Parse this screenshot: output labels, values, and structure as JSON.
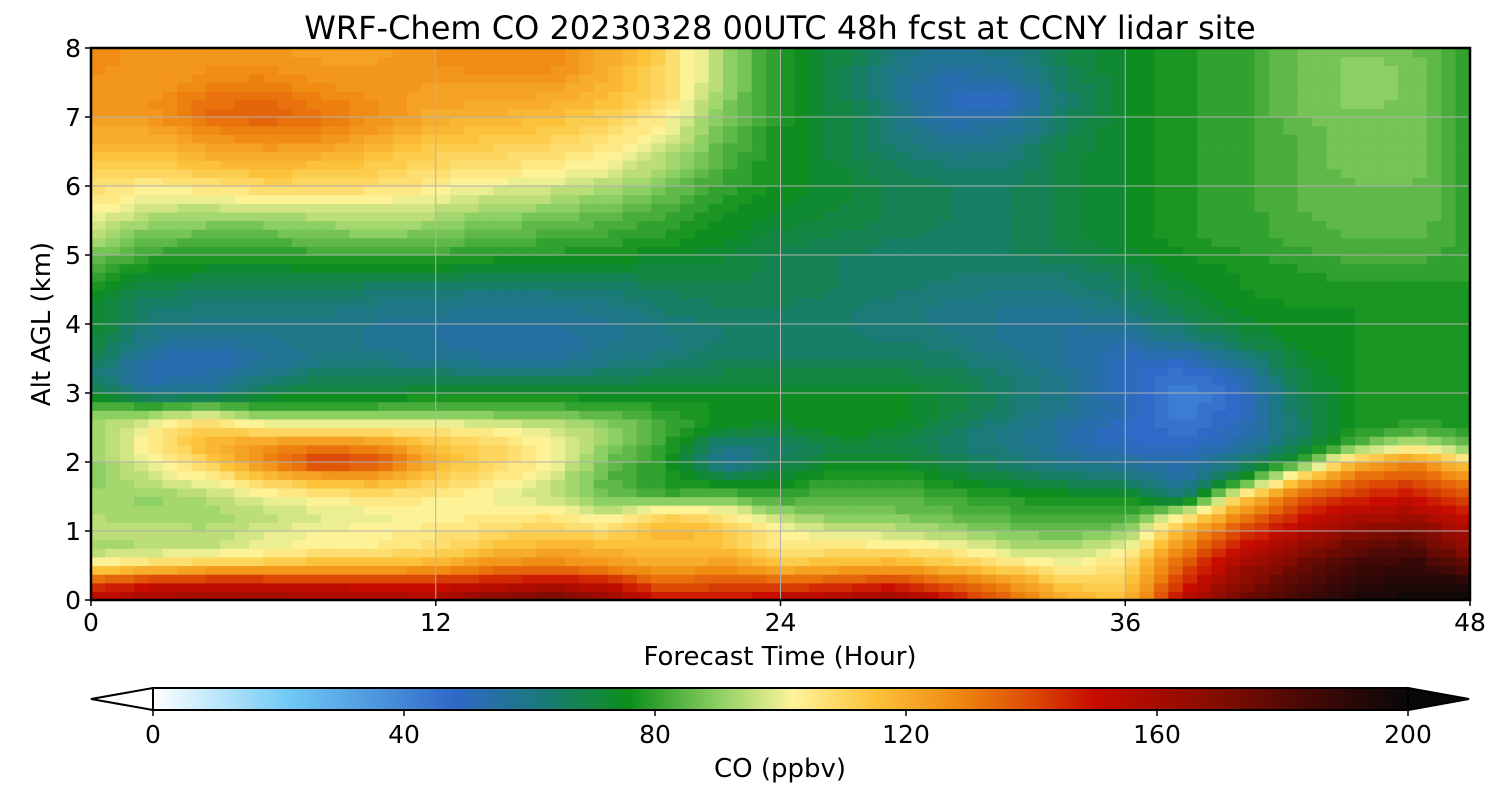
{
  "chart_data": {
    "type": "heatmap",
    "plot_kind": "filled contour (time-height cross section)",
    "title": "WRF-Chem CO  20230328 00UTC 48h fcst at CCNY lidar site",
    "xlabel": "Forecast Time (Hour)",
    "ylabel": "Alt AGL (km)",
    "xlim": [
      0,
      48
    ],
    "ylim": [
      0,
      8
    ],
    "xticks": [
      "0",
      "12",
      "24",
      "36",
      "48"
    ],
    "xtick_values": [
      0,
      12,
      24,
      36,
      48
    ],
    "yticks": [
      "0",
      "1",
      "2",
      "3",
      "4",
      "5",
      "6",
      "7",
      "8"
    ],
    "ytick_values": [
      0,
      1,
      2,
      3,
      4,
      5,
      6,
      7,
      8
    ],
    "grid": true,
    "colorbar": {
      "label": "CO  (ppbv)",
      "orientation": "horizontal",
      "position": "bottom",
      "extend": "both",
      "range": [
        0,
        200
      ],
      "ticks": [
        "0",
        "40",
        "80",
        "120",
        "160",
        "200"
      ],
      "tick_values": [
        0,
        40,
        80,
        120,
        160,
        200
      ],
      "colormap": [
        {
          "v": 0,
          "c": "#ffffff"
        },
        {
          "v": 22,
          "c": "#6ec8f5"
        },
        {
          "v": 48,
          "c": "#2f68c8"
        },
        {
          "v": 62,
          "c": "#1a7a7a"
        },
        {
          "v": 76,
          "c": "#0d8f1a"
        },
        {
          "v": 90,
          "c": "#8ccf62"
        },
        {
          "v": 102,
          "c": "#fef49a"
        },
        {
          "v": 115,
          "c": "#fcc23a"
        },
        {
          "v": 128,
          "c": "#f08a10"
        },
        {
          "v": 140,
          "c": "#dc4a05"
        },
        {
          "v": 150,
          "c": "#c80c00"
        },
        {
          "v": 168,
          "c": "#8a0c00"
        },
        {
          "v": 185,
          "c": "#420806"
        },
        {
          "v": 200,
          "c": "#080808"
        }
      ]
    },
    "x": [
      0,
      2,
      4,
      6,
      8,
      10,
      12,
      14,
      16,
      18,
      20,
      22,
      24,
      26,
      28,
      30,
      32,
      34,
      36,
      38,
      40,
      42,
      44,
      46,
      48
    ],
    "y": [
      0,
      0.25,
      0.5,
      0.75,
      1,
      1.25,
      1.5,
      1.75,
      2,
      2.25,
      2.5,
      2.75,
      3,
      3.25,
      3.5,
      3.75,
      4,
      4.25,
      4.5,
      4.75,
      5,
      5.25,
      5.5,
      5.75,
      6,
      6.25,
      6.5,
      6.75,
      7,
      7.25,
      7.5,
      7.75,
      8
    ],
    "z": [
      [
        155,
        160,
        165,
        162,
        162,
        160,
        158,
        170,
        175,
        165,
        150,
        150,
        155,
        160,
        165,
        150,
        135,
        120,
        115,
        155,
        175,
        185,
        195,
        198,
        200
      ],
      [
        140,
        148,
        150,
        150,
        148,
        148,
        148,
        150,
        155,
        150,
        135,
        140,
        138,
        140,
        145,
        135,
        125,
        112,
        112,
        145,
        168,
        180,
        190,
        195,
        195
      ],
      [
        105,
        110,
        115,
        115,
        118,
        118,
        120,
        128,
        130,
        125,
        120,
        125,
        115,
        118,
        120,
        115,
        108,
        102,
        108,
        138,
        160,
        175,
        185,
        190,
        178
      ],
      [
        92,
        94,
        96,
        100,
        104,
        104,
        108,
        115,
        120,
        118,
        115,
        115,
        105,
        106,
        106,
        103,
        96,
        94,
        100,
        128,
        150,
        165,
        178,
        182,
        165
      ],
      [
        95,
        95,
        94,
        98,
        101,
        103,
        105,
        108,
        112,
        108,
        118,
        115,
        102,
        98,
        96,
        92,
        88,
        85,
        90,
        118,
        140,
        155,
        168,
        172,
        158
      ],
      [
        94,
        92,
        92,
        95,
        98,
        100,
        102,
        104,
        105,
        98,
        110,
        105,
        93,
        88,
        87,
        84,
        82,
        80,
        80,
        100,
        128,
        146,
        155,
        160,
        148
      ],
      [
        92,
        90,
        94,
        100,
        104,
        106,
        104,
        100,
        96,
        86,
        82,
        86,
        80,
        84,
        84,
        82,
        78,
        76,
        76,
        62,
        110,
        135,
        145,
        150,
        140
      ],
      [
        90,
        96,
        102,
        112,
        118,
        120,
        112,
        106,
        98,
        84,
        78,
        72,
        74,
        80,
        80,
        74,
        70,
        66,
        64,
        54,
        74,
        115,
        135,
        140,
        128
      ],
      [
        90,
        100,
        110,
        128,
        145,
        140,
        118,
        110,
        102,
        86,
        78,
        56,
        66,
        74,
        74,
        68,
        64,
        58,
        56,
        52,
        62,
        78,
        118,
        128,
        110
      ],
      [
        90,
        104,
        118,
        125,
        130,
        126,
        115,
        110,
        102,
        90,
        80,
        60,
        64,
        70,
        70,
        64,
        60,
        54,
        50,
        48,
        54,
        66,
        84,
        98,
        86
      ],
      [
        92,
        102,
        112,
        106,
        104,
        104,
        104,
        102,
        98,
        92,
        82,
        74,
        72,
        76,
        74,
        66,
        60,
        54,
        48,
        44,
        50,
        64,
        76,
        80,
        78
      ],
      [
        88,
        88,
        94,
        84,
        84,
        84,
        86,
        84,
        84,
        82,
        80,
        76,
        74,
        76,
        76,
        70,
        64,
        58,
        52,
        42,
        48,
        66,
        76,
        78,
        78
      ],
      [
        72,
        58,
        58,
        70,
        72,
        72,
        74,
        74,
        74,
        74,
        74,
        74,
        74,
        74,
        74,
        70,
        64,
        58,
        50,
        40,
        48,
        68,
        76,
        78,
        78
      ],
      [
        64,
        52,
        54,
        60,
        66,
        66,
        66,
        64,
        64,
        66,
        68,
        70,
        70,
        70,
        70,
        68,
        64,
        58,
        50,
        44,
        52,
        70,
        76,
        78,
        78
      ],
      [
        68,
        54,
        50,
        56,
        60,
        60,
        58,
        56,
        56,
        60,
        62,
        66,
        66,
        66,
        66,
        64,
        60,
        56,
        50,
        50,
        60,
        72,
        76,
        78,
        78
      ],
      [
        72,
        58,
        56,
        58,
        60,
        58,
        56,
        54,
        54,
        58,
        60,
        64,
        64,
        64,
        64,
        62,
        58,
        56,
        54,
        60,
        68,
        74,
        76,
        78,
        78
      ],
      [
        74,
        62,
        60,
        60,
        60,
        58,
        56,
        56,
        56,
        58,
        62,
        64,
        64,
        64,
        62,
        60,
        58,
        56,
        58,
        66,
        72,
        76,
        76,
        78,
        78
      ],
      [
        74,
        64,
        62,
        62,
        62,
        60,
        60,
        58,
        58,
        60,
        64,
        66,
        66,
        64,
        62,
        60,
        58,
        58,
        62,
        70,
        74,
        76,
        76,
        78,
        78
      ],
      [
        76,
        68,
        66,
        66,
        66,
        64,
        62,
        62,
        62,
        64,
        66,
        68,
        68,
        66,
        64,
        62,
        62,
        62,
        66,
        72,
        76,
        78,
        78,
        78,
        78
      ],
      [
        82,
        74,
        72,
        72,
        72,
        72,
        72,
        70,
        70,
        70,
        70,
        70,
        68,
        66,
        66,
        64,
        64,
        64,
        68,
        74,
        76,
        78,
        80,
        80,
        80
      ],
      [
        88,
        80,
        78,
        78,
        80,
        80,
        80,
        78,
        78,
        76,
        74,
        72,
        68,
        66,
        66,
        66,
        66,
        68,
        72,
        76,
        78,
        80,
        82,
        82,
        80
      ],
      [
        94,
        86,
        84,
        84,
        86,
        88,
        86,
        84,
        82,
        80,
        78,
        74,
        70,
        68,
        66,
        66,
        66,
        70,
        74,
        78,
        80,
        82,
        84,
        84,
        80
      ],
      [
        100,
        92,
        90,
        90,
        92,
        94,
        92,
        88,
        86,
        84,
        80,
        76,
        72,
        70,
        68,
        66,
        66,
        70,
        74,
        78,
        80,
        82,
        86,
        86,
        80
      ],
      [
        106,
        98,
        98,
        100,
        100,
        100,
        98,
        94,
        92,
        88,
        84,
        78,
        74,
        72,
        68,
        66,
        66,
        70,
        74,
        78,
        80,
        84,
        86,
        86,
        80
      ],
      [
        108,
        104,
        106,
        110,
        110,
        108,
        104,
        100,
        98,
        94,
        88,
        80,
        76,
        72,
        68,
        66,
        66,
        70,
        74,
        78,
        80,
        84,
        86,
        86,
        80
      ],
      [
        112,
        110,
        114,
        116,
        114,
        112,
        108,
        106,
        104,
        100,
        92,
        82,
        76,
        72,
        66,
        64,
        64,
        70,
        74,
        78,
        80,
        84,
        88,
        88,
        80
      ],
      [
        116,
        116,
        120,
        122,
        120,
        116,
        112,
        110,
        108,
        104,
        96,
        84,
        76,
        70,
        64,
        60,
        62,
        70,
        74,
        78,
        80,
        84,
        88,
        88,
        80
      ],
      [
        120,
        120,
        126,
        130,
        128,
        122,
        116,
        114,
        112,
        108,
        100,
        86,
        76,
        70,
        62,
        56,
        58,
        68,
        74,
        78,
        80,
        84,
        88,
        88,
        80
      ],
      [
        124,
        124,
        134,
        136,
        132,
        126,
        120,
        118,
        116,
        112,
        104,
        88,
        78,
        70,
        60,
        52,
        54,
        66,
        74,
        78,
        80,
        86,
        88,
        88,
        80
      ],
      [
        126,
        126,
        132,
        134,
        130,
        126,
        122,
        122,
        120,
        116,
        108,
        90,
        78,
        70,
        60,
        50,
        50,
        64,
        74,
        78,
        80,
        86,
        90,
        88,
        80
      ],
      [
        126,
        124,
        128,
        130,
        126,
        124,
        124,
        124,
        124,
        118,
        110,
        92,
        78,
        70,
        58,
        52,
        54,
        66,
        74,
        78,
        80,
        86,
        90,
        88,
        80
      ],
      [
        128,
        124,
        126,
        126,
        124,
        124,
        126,
        128,
        128,
        120,
        110,
        92,
        78,
        70,
        60,
        56,
        58,
        68,
        74,
        78,
        80,
        86,
        90,
        88,
        80
      ],
      [
        128,
        124,
        124,
        124,
        122,
        122,
        126,
        128,
        128,
        120,
        110,
        92,
        78,
        70,
        60,
        58,
        60,
        68,
        74,
        78,
        80,
        86,
        88,
        86,
        80
      ]
    ]
  }
}
